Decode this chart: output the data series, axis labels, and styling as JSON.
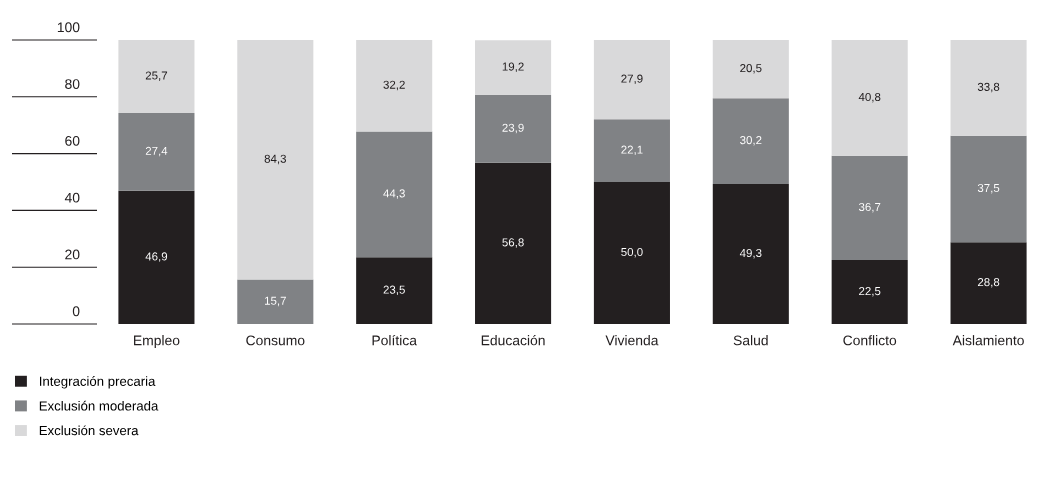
{
  "chart_data": {
    "type": "bar",
    "stacked": true,
    "grid": false,
    "legend": "bottom left",
    "categories": [
      "Empleo",
      "Consumo",
      "Política",
      "Educación",
      "Vivienda",
      "Salud",
      "Conflicto",
      "Aislamiento"
    ],
    "ylim": [
      0,
      100
    ],
    "yticks": [
      0,
      20,
      40,
      60,
      80,
      100
    ],
    "series": [
      {
        "name": "Integración precaria",
        "color": "#231f20",
        "values": [
          46.9,
          null,
          23.5,
          56.8,
          50.0,
          49.3,
          22.5,
          28.8
        ],
        "value_labels": [
          "46,9",
          null,
          "23,5",
          "56,8",
          "50,0",
          "49,3",
          "22,5",
          "28,8"
        ]
      },
      {
        "name": "Exclusión moderada",
        "color": "#808285",
        "values": [
          27.4,
          15.7,
          44.3,
          23.9,
          22.1,
          30.2,
          36.7,
          37.5
        ],
        "value_labels": [
          "27,4",
          "15,7",
          "44,3",
          "23,9",
          "22,1",
          "30,2",
          "36,7",
          "37,5"
        ]
      },
      {
        "name": "Exclusión severa",
        "color": "#d9d9da",
        "values": [
          25.7,
          84.3,
          32.2,
          19.2,
          27.9,
          20.5,
          40.8,
          33.8
        ],
        "value_labels": [
          "25,7",
          "84,3",
          "32,2",
          "19,2",
          "27,9",
          "20,5",
          "40,8",
          "33,8"
        ]
      }
    ]
  }
}
